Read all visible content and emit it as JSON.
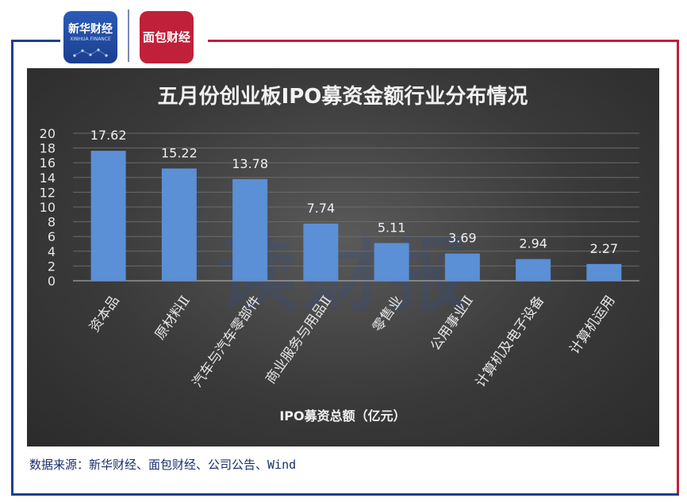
{
  "branding": {
    "logo1_text": "新华财经",
    "logo1_sub": "XINHUA FINANCE",
    "logo2_text": "面包财经",
    "watermark": "读财报"
  },
  "source_text": "数据来源：新华财经、面包财经、公司公告、Wind",
  "chart_data": {
    "type": "bar",
    "title": "五月份创业板IPO募资金额行业分布情况",
    "xlabel": "IPO募资总额（亿元）",
    "ylabel": "",
    "categories": [
      "资本品",
      "原材料Ⅱ",
      "汽车与汽车零部件",
      "商业服务与用品Ⅱ",
      "零售业",
      "公用事业Ⅱ",
      "计算机及电子设备",
      "计算机运用"
    ],
    "values": [
      17.62,
      15.22,
      13.78,
      7.74,
      5.11,
      3.69,
      2.94,
      2.27
    ],
    "data_labels": [
      "17.62",
      "15.22",
      "13.78",
      "7.74",
      "5.11",
      "3.69",
      "2.94",
      "2.27"
    ],
    "ylim": [
      0,
      20
    ],
    "yticks": [
      0,
      2,
      4,
      6,
      8,
      10,
      12,
      14,
      16,
      18,
      20
    ],
    "grid": true,
    "bar_color": "#5b8fd6",
    "text_color": "#e6e6e6"
  }
}
